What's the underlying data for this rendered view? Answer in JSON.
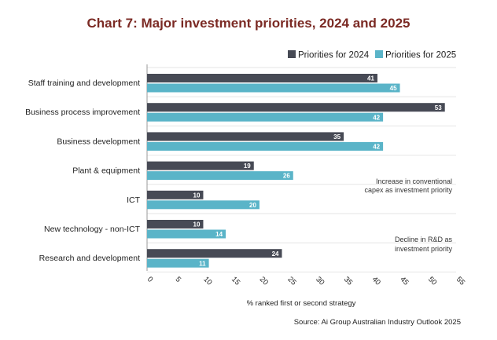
{
  "colors": {
    "title": "#7b2a24",
    "series_2024": "#474a55",
    "series_2025": "#5ab4c8",
    "grid": "#e6e6e6"
  },
  "chart_data": {
    "type": "bar",
    "orientation": "horizontal",
    "title": "Chart 7: Major investment priorities, 2024 and 2025",
    "categories": [
      "Staff training and development",
      "Business process improvement",
      "Business development",
      "Plant & equipment",
      "ICT",
      "New technology - non-ICT",
      "Research and development"
    ],
    "series": [
      {
        "name": "Priorities for 2024",
        "values": [
          41,
          53,
          35,
          19,
          10,
          10,
          24
        ]
      },
      {
        "name": "Priorities for 2025",
        "values": [
          45,
          42,
          42,
          26,
          20,
          14,
          11
        ]
      }
    ],
    "xlabel": "% ranked first or second strategy",
    "xlim": [
      0,
      55
    ],
    "xticks": [
      "0",
      "5",
      "10",
      "15",
      "20",
      "25",
      "30",
      "35",
      "40",
      "45",
      "50",
      "55"
    ],
    "legend_position": "top-right",
    "grid": true,
    "data_labels": true,
    "annotations": [
      {
        "lines": [
          "Increase in conventional",
          "capex as investment priority"
        ],
        "near_category": "Plant & equipment"
      },
      {
        "lines": [
          "Decline in R&D as",
          "investment priority"
        ],
        "near_category": "New technology - non-ICT"
      }
    ],
    "source": "Source: Ai Group Australian Industry Outlook 2025"
  }
}
